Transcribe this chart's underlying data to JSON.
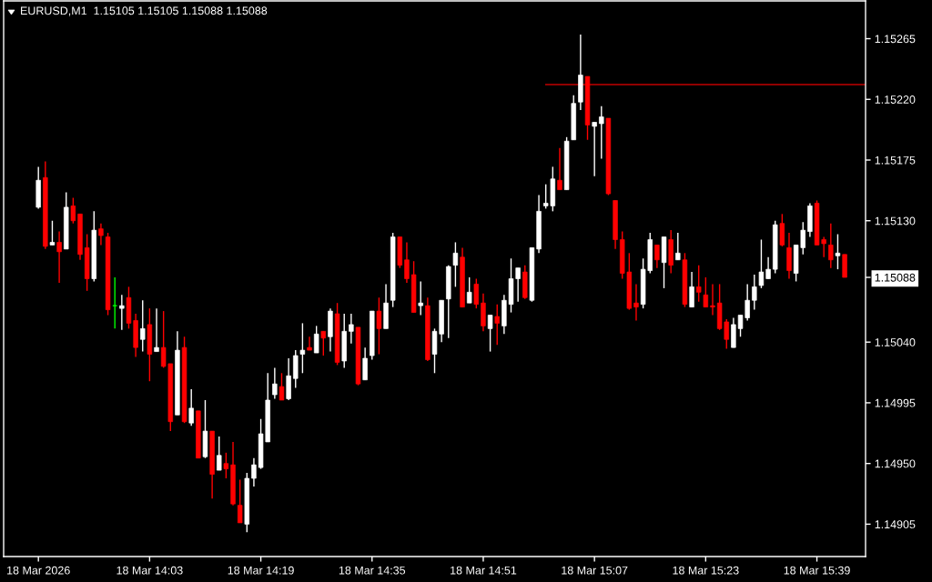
{
  "chart_data": {
    "type": "candlestick",
    "title": "EURUSD,M1  1.15105 1.15105 1.15088 1.15088",
    "x": [
      "2026-03-18T13:47",
      "2026-03-18T13:48",
      "2026-03-18T13:49",
      "2026-03-18T13:50",
      "2026-03-18T13:51",
      "2026-03-18T13:52",
      "2026-03-18T13:53",
      "2026-03-18T13:54",
      "2026-03-18T13:55",
      "2026-03-18T13:56",
      "2026-03-18T13:57",
      "2026-03-18T13:58",
      "2026-03-18T13:59",
      "2026-03-18T14:00",
      "2026-03-18T14:01",
      "2026-03-18T14:02",
      "2026-03-18T14:03",
      "2026-03-18T14:04",
      "2026-03-18T14:05",
      "2026-03-18T14:06",
      "2026-03-18T14:07",
      "2026-03-18T14:08",
      "2026-03-18T14:09",
      "2026-03-18T14:10",
      "2026-03-18T14:11",
      "2026-03-18T14:12",
      "2026-03-18T14:13",
      "2026-03-18T14:14",
      "2026-03-18T14:15",
      "2026-03-18T14:16",
      "2026-03-18T14:17",
      "2026-03-18T14:18",
      "2026-03-18T14:19",
      "2026-03-18T14:20",
      "2026-03-18T14:21",
      "2026-03-18T14:22",
      "2026-03-18T14:23",
      "2026-03-18T14:24",
      "2026-03-18T14:25",
      "2026-03-18T14:26",
      "2026-03-18T14:27",
      "2026-03-18T14:28",
      "2026-03-18T14:29",
      "2026-03-18T14:30",
      "2026-03-18T14:31",
      "2026-03-18T14:32",
      "2026-03-18T14:33",
      "2026-03-18T14:34",
      "2026-03-18T14:35",
      "2026-03-18T14:36",
      "2026-03-18T14:37",
      "2026-03-18T14:38",
      "2026-03-18T14:39",
      "2026-03-18T14:40",
      "2026-03-18T14:41",
      "2026-03-18T14:42",
      "2026-03-18T14:43",
      "2026-03-18T14:44",
      "2026-03-18T14:45",
      "2026-03-18T14:46",
      "2026-03-18T14:47",
      "2026-03-18T14:48",
      "2026-03-18T14:49",
      "2026-03-18T14:50",
      "2026-03-18T14:51",
      "2026-03-18T14:52",
      "2026-03-18T14:53",
      "2026-03-18T14:54",
      "2026-03-18T14:55",
      "2026-03-18T14:56",
      "2026-03-18T14:57",
      "2026-03-18T14:58",
      "2026-03-18T14:59",
      "2026-03-18T15:00",
      "2026-03-18T15:01",
      "2026-03-18T15:02",
      "2026-03-18T15:03",
      "2026-03-18T15:04",
      "2026-03-18T15:05",
      "2026-03-18T15:06",
      "2026-03-18T15:07",
      "2026-03-18T15:08",
      "2026-03-18T15:09",
      "2026-03-18T15:10",
      "2026-03-18T15:11",
      "2026-03-18T15:12",
      "2026-03-18T15:13",
      "2026-03-18T15:14",
      "2026-03-18T15:15",
      "2026-03-18T15:16",
      "2026-03-18T15:17",
      "2026-03-18T15:18",
      "2026-03-18T15:19",
      "2026-03-18T15:20",
      "2026-03-18T15:21",
      "2026-03-18T15:22",
      "2026-03-18T15:23",
      "2026-03-18T15:24",
      "2026-03-18T15:25",
      "2026-03-18T15:26",
      "2026-03-18T15:27",
      "2026-03-18T15:28",
      "2026-03-18T15:29",
      "2026-03-18T15:30",
      "2026-03-18T15:31",
      "2026-03-18T15:32",
      "2026-03-18T15:33",
      "2026-03-18T15:34",
      "2026-03-18T15:35",
      "2026-03-18T15:36",
      "2026-03-18T15:37",
      "2026-03-18T15:38",
      "2026-03-18T15:39",
      "2026-03-18T15:40",
      "2026-03-18T15:41",
      "2026-03-18T15:42",
      "2026-03-18T15:43"
    ],
    "ohlc": [
      [
        1.1514,
        1.1517,
        1.15139,
        1.1516
      ],
      [
        1.15162,
        1.15174,
        1.15109,
        1.15111
      ],
      [
        1.15112,
        1.1513,
        1.15112,
        1.15114
      ],
      [
        1.15114,
        1.15122,
        1.15084,
        1.15107
      ],
      [
        1.15109,
        1.15151,
        1.15109,
        1.1514
      ],
      [
        1.15141,
        1.15147,
        1.15128,
        1.1513
      ],
      [
        1.15135,
        1.15135,
        1.15101,
        1.15105
      ],
      [
        1.1511,
        1.1512,
        1.15078,
        1.15087
      ],
      [
        1.15087,
        1.15137,
        1.15085,
        1.15123
      ],
      [
        1.15124,
        1.15128,
        1.15112,
        1.15119
      ],
      [
        1.15118,
        1.15121,
        1.1506,
        1.15064
      ],
      [
        1.15067,
        1.15088,
        1.1505,
        1.15067
      ],
      [
        1.15065,
        1.15075,
        1.15049,
        1.15067
      ],
      [
        1.15073,
        1.15081,
        1.1505,
        1.15054
      ],
      [
        1.15056,
        1.15061,
        1.15029,
        1.15036
      ],
      [
        1.15042,
        1.15071,
        1.15033,
        1.1505
      ],
      [
        1.15053,
        1.15065,
        1.15011,
        1.15031
      ],
      [
        1.15033,
        1.15065,
        1.15033,
        1.15036
      ],
      [
        1.15036,
        1.15063,
        1.15021,
        1.15022
      ],
      [
        1.15024,
        1.15024,
        1.14974,
        1.14981
      ],
      [
        1.14986,
        1.15048,
        1.14986,
        1.15034
      ],
      [
        1.15036,
        1.15044,
        1.1498,
        1.14981
      ],
      [
        1.1498,
        1.15005,
        1.14978,
        1.14991
      ],
      [
        1.14989,
        1.14989,
        1.14954,
        1.14954
      ],
      [
        1.14955,
        1.14997,
        1.14954,
        1.14974
      ],
      [
        1.14974,
        1.14974,
        1.14924,
        1.14942
      ],
      [
        1.14945,
        1.1497,
        1.14945,
        1.14956
      ],
      [
        1.1495,
        1.14958,
        1.14939,
        1.14946
      ],
      [
        1.14949,
        1.14966,
        1.14919,
        1.1492
      ],
      [
        1.14919,
        1.14938,
        1.14906,
        1.14906
      ],
      [
        1.14905,
        1.14943,
        1.14899,
        1.14939
      ],
      [
        1.14939,
        1.14954,
        1.14933,
        1.14949
      ],
      [
        1.14947,
        1.14983,
        1.14946,
        1.14972
      ],
      [
        1.14966,
        1.15017,
        1.14966,
        1.14997
      ],
      [
        1.15001,
        1.15021,
        1.14998,
        1.15009
      ],
      [
        1.15007,
        1.15017,
        1.14997,
        1.14997
      ],
      [
        1.14998,
        1.15028,
        1.14997,
        1.15015
      ],
      [
        1.15013,
        1.15034,
        1.15006,
        1.1503
      ],
      [
        1.15031,
        1.15054,
        1.15017,
        1.15034
      ],
      [
        1.15036,
        1.15044,
        1.15034,
        1.15034
      ],
      [
        1.15032,
        1.15052,
        1.15032,
        1.15046
      ],
      [
        1.15048,
        1.15048,
        1.1503,
        1.15043
      ],
      [
        1.15044,
        1.15065,
        1.15033,
        1.15063
      ],
      [
        1.15061,
        1.15069,
        1.15023,
        1.15025
      ],
      [
        1.15026,
        1.15061,
        1.15021,
        1.15048
      ],
      [
        1.15048,
        1.15061,
        1.15039,
        1.15053
      ],
      [
        1.15051,
        1.15051,
        1.15008,
        1.15009
      ],
      [
        1.15012,
        1.15036,
        1.15012,
        1.15028
      ],
      [
        1.1503,
        1.15063,
        1.15027,
        1.15063
      ],
      [
        1.15063,
        1.15073,
        1.15031,
        1.1505
      ],
      [
        1.1505,
        1.15083,
        1.1505,
        1.15069
      ],
      [
        1.15071,
        1.15121,
        1.15066,
        1.15118
      ],
      [
        1.15118,
        1.15118,
        1.15095,
        1.15097
      ],
      [
        1.15101,
        1.15114,
        1.15084,
        1.15087
      ],
      [
        1.1509,
        1.151,
        1.15062,
        1.15062
      ],
      [
        1.15067,
        1.15085,
        1.1506,
        1.15069
      ],
      [
        1.15067,
        1.15073,
        1.15026,
        1.15027
      ],
      [
        1.15031,
        1.1505,
        1.15017,
        1.15048
      ],
      [
        1.15046,
        1.15071,
        1.1504,
        1.15071
      ],
      [
        1.15072,
        1.15097,
        1.15043,
        1.15096
      ],
      [
        1.15097,
        1.15114,
        1.15081,
        1.15106
      ],
      [
        1.15103,
        1.1511,
        1.15066,
        1.15066
      ],
      [
        1.15069,
        1.15088,
        1.15069,
        1.15077
      ],
      [
        1.15083,
        1.15087,
        1.15065,
        1.15068
      ],
      [
        1.15069,
        1.15076,
        1.15048,
        1.15052
      ],
      [
        1.1505,
        1.1506,
        1.15033,
        1.1506
      ],
      [
        1.15059,
        1.15068,
        1.15038,
        1.15054
      ],
      [
        1.15052,
        1.15075,
        1.15046,
        1.15071
      ],
      [
        1.15068,
        1.15102,
        1.15062,
        1.15087
      ],
      [
        1.15087,
        1.15095,
        1.1507,
        1.15095
      ],
      [
        1.15092,
        1.15097,
        1.15072,
        1.15073
      ],
      [
        1.15071,
        1.1511,
        1.1507,
        1.1511
      ],
      [
        1.15109,
        1.15149,
        1.15106,
        1.15137
      ],
      [
        1.15141,
        1.15157,
        1.15139,
        1.15143
      ],
      [
        1.15141,
        1.1517,
        1.15137,
        1.15161
      ],
      [
        1.1516,
        1.15184,
        1.15153,
        1.15153
      ],
      [
        1.15153,
        1.15192,
        1.15153,
        1.15189
      ],
      [
        1.1519,
        1.15223,
        1.1519,
        1.15217
      ],
      [
        1.15218,
        1.15268,
        1.15212,
        1.15238
      ],
      [
        1.15237,
        1.15237,
        1.1519,
        1.15201
      ],
      [
        1.152,
        1.15203,
        1.15163,
        1.15203
      ],
      [
        1.15202,
        1.15215,
        1.15176,
        1.15207
      ],
      [
        1.15206,
        1.15206,
        1.15149,
        1.1515
      ],
      [
        1.15145,
        1.15145,
        1.15109,
        1.15116
      ],
      [
        1.15116,
        1.15122,
        1.15087,
        1.15091
      ],
      [
        1.15092,
        1.15106,
        1.15064,
        1.15065
      ],
      [
        1.15069,
        1.15083,
        1.15056,
        1.15066
      ],
      [
        1.15068,
        1.15102,
        1.15065,
        1.15094
      ],
      [
        1.15093,
        1.15121,
        1.15091,
        1.15116
      ],
      [
        1.15112,
        1.15112,
        1.15095,
        1.15101
      ],
      [
        1.15099,
        1.15118,
        1.1508,
        1.15118
      ],
      [
        1.15116,
        1.15123,
        1.15091,
        1.15097
      ],
      [
        1.15101,
        1.15121,
        1.15101,
        1.15106
      ],
      [
        1.15101,
        1.15106,
        1.15066,
        1.15068
      ],
      [
        1.15066,
        1.15092,
        1.15066,
        1.15081
      ],
      [
        1.15081,
        1.15097,
        1.1507,
        1.15077
      ],
      [
        1.15075,
        1.15088,
        1.15066,
        1.15066
      ],
      [
        1.15067,
        1.15083,
        1.1506,
        1.15066
      ],
      [
        1.15069,
        1.15083,
        1.15049,
        1.1505
      ],
      [
        1.15055,
        1.15057,
        1.15035,
        1.15042
      ],
      [
        1.15036,
        1.15058,
        1.15036,
        1.15053
      ],
      [
        1.1505,
        1.1506,
        1.15044,
        1.1506
      ],
      [
        1.15058,
        1.15083,
        1.15056,
        1.15071
      ],
      [
        1.15071,
        1.1509,
        1.15064,
        1.15081
      ],
      [
        1.15082,
        1.15116,
        1.1508,
        1.15092
      ],
      [
        1.15087,
        1.15103,
        1.15087,
        1.15094
      ],
      [
        1.15094,
        1.1513,
        1.15091,
        1.15127
      ],
      [
        1.15128,
        1.15135,
        1.15111,
        1.15112
      ],
      [
        1.1511,
        1.15121,
        1.15087,
        1.15093
      ],
      [
        1.15091,
        1.15112,
        1.15085,
        1.15112
      ],
      [
        1.1511,
        1.15129,
        1.15105,
        1.15123
      ],
      [
        1.15122,
        1.15143,
        1.15118,
        1.15141
      ],
      [
        1.15143,
        1.15145,
        1.15112,
        1.15112
      ],
      [
        1.15116,
        1.15118,
        1.15103,
        1.15113
      ],
      [
        1.15112,
        1.15128,
        1.15095,
        1.15101
      ],
      [
        1.15104,
        1.1512,
        1.15094,
        1.15106
      ],
      [
        1.15105,
        1.15105,
        1.15088,
        1.15088
      ]
    ],
    "colors": [
      "#ffffff",
      "#ff0000",
      "#ffffff",
      "#ff0000",
      "#ffffff",
      "#ff0000",
      "#ff0000",
      "#ff0000",
      "#ffffff",
      "#ff0000",
      "#ff0000",
      "#00ff00",
      "#ffffff",
      "#ff0000",
      "#ff0000",
      "#ffffff",
      "#ff0000",
      "#ffffff",
      "#ff0000",
      "#ff0000",
      "#ffffff",
      "#ff0000",
      "#ffffff",
      "#ff0000",
      "#ffffff",
      "#ff0000",
      "#ffffff",
      "#ff0000",
      "#ff0000",
      "#ff0000",
      "#ffffff",
      "#ffffff",
      "#ffffff",
      "#ffffff",
      "#ffffff",
      "#ff0000",
      "#ffffff",
      "#ffffff",
      "#ffffff",
      "#ff0000",
      "#ffffff",
      "#ff0000",
      "#ffffff",
      "#ff0000",
      "#ffffff",
      "#ffffff",
      "#ff0000",
      "#ffffff",
      "#ffffff",
      "#ff0000",
      "#ffffff",
      "#ffffff",
      "#ff0000",
      "#ff0000",
      "#ff0000",
      "#ffffff",
      "#ff0000",
      "#ffffff",
      "#ffffff",
      "#ffffff",
      "#ffffff",
      "#ff0000",
      "#ffffff",
      "#ff0000",
      "#ff0000",
      "#ffffff",
      "#ff0000",
      "#ffffff",
      "#ffffff",
      "#ffffff",
      "#ff0000",
      "#ffffff",
      "#ffffff",
      "#ffffff",
      "#ffffff",
      "#ff0000",
      "#ffffff",
      "#ffffff",
      "#ffffff",
      "#ff0000",
      "#ffffff",
      "#ffffff",
      "#ff0000",
      "#ff0000",
      "#ff0000",
      "#ff0000",
      "#ff0000",
      "#ffffff",
      "#ffffff",
      "#ff0000",
      "#ffffff",
      "#ff0000",
      "#ffffff",
      "#ff0000",
      "#ffffff",
      "#ff0000",
      "#ff0000",
      "#ff0000",
      "#ff0000",
      "#ff0000",
      "#ffffff",
      "#ffffff",
      "#ffffff",
      "#ffffff",
      "#ffffff",
      "#ffffff",
      "#ffffff",
      "#ff0000",
      "#ff0000",
      "#ffffff",
      "#ffffff",
      "#ffffff",
      "#ff0000",
      "#ff0000",
      "#ff0000",
      "#ffffff",
      "#ff0000"
    ],
    "series": [
      {
        "type": "line",
        "x": [
          "2026-03-18T15:00",
          "2026-03-18T15:46"
        ],
        "values": [
          1.15231,
          1.15231
        ],
        "color": "#c00000"
      }
    ],
    "xlim": [
      "2026-03-18T13:42",
      "2026-03-18T15:46"
    ],
    "xticks": [
      {
        "value": "2026-03-18T13:47",
        "label": "18 Mar 2026"
      },
      {
        "value": "2026-03-18T14:03",
        "label": "18 Mar 14:03"
      },
      {
        "value": "2026-03-18T14:19",
        "label": "18 Mar 14:19"
      },
      {
        "value": "2026-03-18T14:35",
        "label": "18 Mar 14:35"
      },
      {
        "value": "2026-03-18T14:51",
        "label": "18 Mar 14:51"
      },
      {
        "value": "2026-03-18T15:07",
        "label": "18 Mar 15:07"
      },
      {
        "value": "2026-03-18T15:23",
        "label": "18 Mar 15:23"
      },
      {
        "value": "2026-03-18T15:39",
        "label": "18 Mar 15:39"
      }
    ],
    "ylim": [
      1.14881,
      1.15293
    ],
    "yticks": [
      {
        "value": 1.14905,
        "label": "1.14905"
      },
      {
        "value": 1.1495,
        "label": "1.14950"
      },
      {
        "value": 1.14995,
        "label": "1.14995"
      },
      {
        "value": 1.1504,
        "label": "1.15040"
      },
      {
        "value": 1.15088,
        "label": "1.15088"
      },
      {
        "value": 1.1513,
        "label": "1.15130"
      },
      {
        "value": 1.15175,
        "label": "1.15175"
      },
      {
        "value": 1.1522,
        "label": "1.15220"
      },
      {
        "value": 1.15265,
        "label": "1.15265"
      }
    ]
  }
}
